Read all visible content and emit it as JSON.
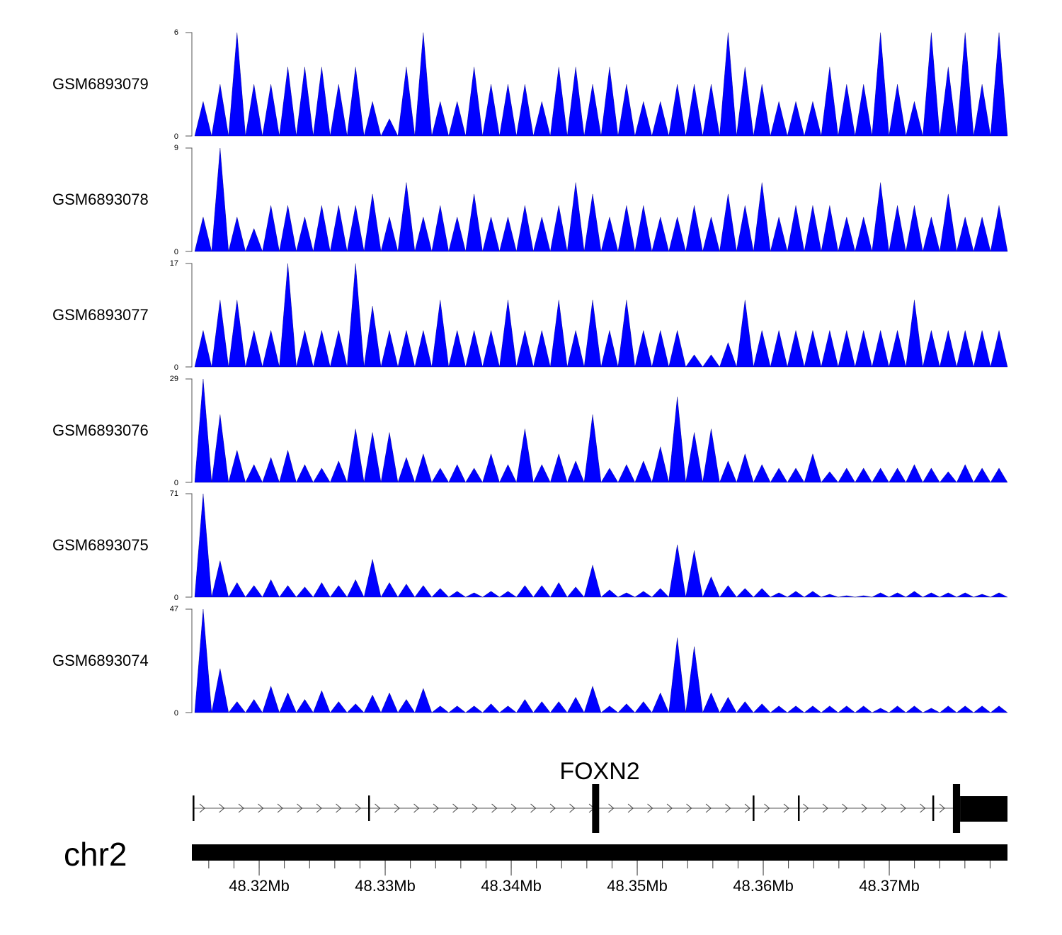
{
  "chart_data": {
    "type": "area",
    "title": "",
    "xlabel": "",
    "chromosome": "chr2",
    "xlim_mb": [
      48.31466,
      48.37938
    ],
    "x_ticks_mb": [
      48.32,
      48.33,
      48.34,
      48.35,
      48.36,
      48.37
    ],
    "x_tick_labels": [
      "48.32Mb",
      "48.33Mb",
      "48.34Mb",
      "48.35Mb",
      "48.36Mb",
      "48.37Mb"
    ],
    "minor_tick_step_mb": 0.002,
    "fill_color": "#0000FF",
    "bins": 48,
    "tracks": [
      {
        "name": "GSM6893079",
        "ylim": [
          0,
          6
        ],
        "y_tick_labels": [
          "0",
          "6"
        ],
        "values": [
          2,
          3,
          6,
          3,
          3,
          4,
          4,
          4,
          3,
          4,
          2,
          1,
          4,
          6,
          2,
          2,
          4,
          3,
          3,
          3,
          2,
          4,
          4,
          3,
          4,
          3,
          2,
          2,
          3,
          3,
          3,
          6,
          4,
          3,
          2,
          2,
          2,
          4,
          3,
          3,
          6,
          3,
          2,
          6,
          4,
          6,
          3,
          6
        ]
      },
      {
        "name": "GSM6893078",
        "ylim": [
          0,
          9
        ],
        "y_tick_labels": [
          "0",
          "9"
        ],
        "values": [
          3,
          9,
          3,
          2,
          4,
          4,
          3,
          4,
          4,
          4,
          5,
          3,
          6,
          3,
          4,
          3,
          5,
          3,
          3,
          4,
          3,
          4,
          6,
          5,
          3,
          4,
          4,
          3,
          3,
          4,
          3,
          5,
          4,
          6,
          3,
          4,
          4,
          4,
          3,
          3,
          6,
          4,
          4,
          3,
          5,
          3,
          3,
          4
        ]
      },
      {
        "name": "GSM6893077",
        "ylim": [
          0,
          17
        ],
        "y_tick_labels": [
          "0",
          "17"
        ],
        "values": [
          6,
          11,
          11,
          6,
          6,
          17,
          6,
          6,
          6,
          17,
          10,
          6,
          6,
          6,
          11,
          6,
          6,
          6,
          11,
          6,
          6,
          11,
          6,
          11,
          6,
          11,
          6,
          6,
          6,
          2,
          2,
          4,
          11,
          6,
          6,
          6,
          6,
          6,
          6,
          6,
          6,
          6,
          11,
          6,
          6,
          6,
          6,
          6
        ]
      },
      {
        "name": "GSM6893076",
        "ylim": [
          0,
          29
        ],
        "y_tick_labels": [
          "0",
          "29"
        ],
        "values": [
          29,
          19,
          9,
          5,
          7,
          9,
          5,
          4,
          6,
          15,
          14,
          14,
          7,
          8,
          4,
          5,
          4,
          8,
          5,
          15,
          5,
          8,
          6,
          19,
          4,
          5,
          6,
          10,
          24,
          14,
          15,
          6,
          8,
          5,
          4,
          4,
          8,
          3,
          4,
          4,
          4,
          4,
          5,
          4,
          3,
          5,
          4,
          4
        ]
      },
      {
        "name": "GSM6893075",
        "ylim": [
          0,
          71
        ],
        "y_tick_labels": [
          "0",
          "71"
        ],
        "values": [
          71,
          25,
          10,
          8,
          12,
          8,
          7,
          10,
          8,
          12,
          26,
          10,
          9,
          8,
          6,
          4,
          3,
          4,
          4,
          8,
          8,
          10,
          7,
          22,
          5,
          3,
          4,
          6,
          36,
          32,
          14,
          8,
          6,
          6,
          3,
          4,
          4,
          2,
          1,
          1,
          3,
          3,
          4,
          3,
          3,
          3,
          2,
          3
        ]
      },
      {
        "name": "GSM6893074",
        "ylim": [
          0,
          47
        ],
        "y_tick_labels": [
          "0",
          "47"
        ],
        "values": [
          47,
          20,
          5,
          6,
          12,
          9,
          6,
          10,
          5,
          4,
          8,
          9,
          6,
          11,
          3,
          3,
          3,
          4,
          3,
          6,
          5,
          5,
          7,
          12,
          3,
          4,
          5,
          9,
          34,
          30,
          9,
          7,
          5,
          4,
          3,
          3,
          3,
          3,
          3,
          3,
          2,
          3,
          3,
          2,
          3,
          3,
          3,
          3
        ]
      }
    ],
    "gene": {
      "name": "FOXN2",
      "strand": "+",
      "start_mb": 48.31472,
      "end_mb": 48.37938,
      "exons_mb": [
        [
          48.31472,
          48.31478
        ],
        [
          48.32865,
          48.32871
        ],
        [
          48.34642,
          48.34698
        ],
        [
          48.35916,
          48.35922
        ],
        [
          48.36275,
          48.36281
        ],
        [
          48.37342,
          48.37348
        ],
        [
          48.37505,
          48.37562
        ]
      ],
      "utr_mb": [
        48.37562,
        48.37938
      ]
    }
  }
}
